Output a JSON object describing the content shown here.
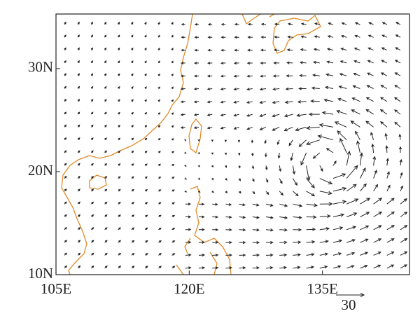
{
  "map": {
    "xlim": [
      105,
      144.8
    ],
    "ylim": [
      10,
      35.3
    ],
    "xticks": [
      {
        "value": 105,
        "label": "105E"
      },
      {
        "value": 120,
        "label": "120E"
      },
      {
        "value": 135,
        "label": "135E"
      }
    ],
    "yticks": [
      {
        "value": 10,
        "label": "10N"
      },
      {
        "value": 20,
        "label": "20N"
      },
      {
        "value": 30,
        "label": "30N"
      }
    ],
    "reference_vector": {
      "value": 30,
      "label": "30"
    }
  }
}
